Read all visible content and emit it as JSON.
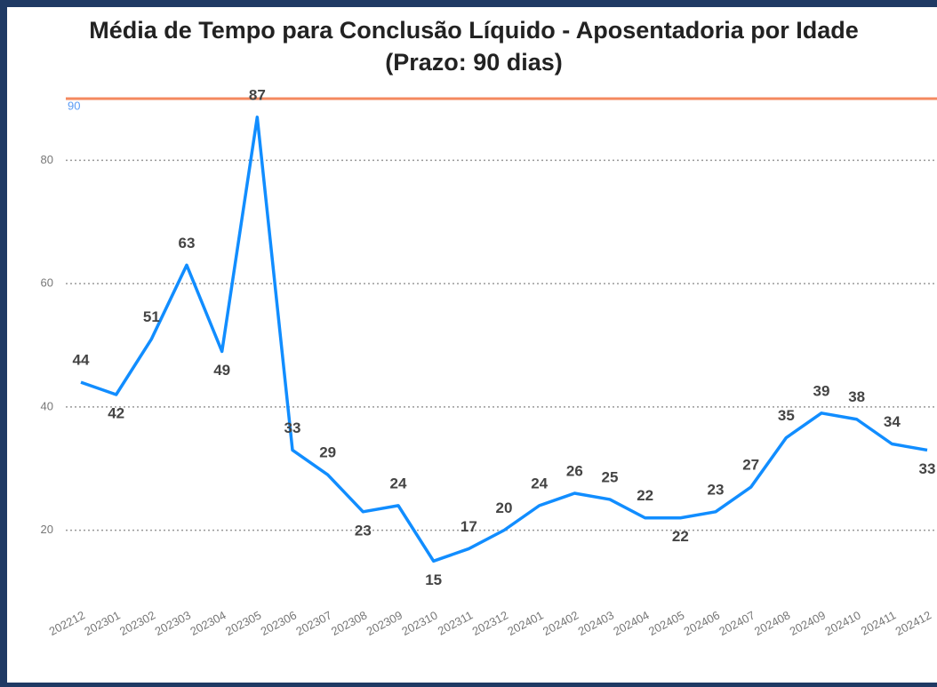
{
  "chart_data": {
    "type": "line",
    "title": "Média de Tempo para Conclusão Líquido - Aposentadoria por Idade",
    "subtitle": "(Prazo: 90 dias)",
    "categories": [
      "202212",
      "202301",
      "202302",
      "202303",
      "202304",
      "202305",
      "202306",
      "202307",
      "202308",
      "202309",
      "202310",
      "202311",
      "202312",
      "202401",
      "202402",
      "202403",
      "202404",
      "202405",
      "202406",
      "202407",
      "202408",
      "202409",
      "202410",
      "202411",
      "202412"
    ],
    "series": [
      {
        "name": "Média de Tempo",
        "color": "#118dff",
        "values": [
          44,
          42,
          51,
          63,
          49,
          87,
          33,
          29,
          23,
          24,
          15,
          17,
          20,
          24,
          26,
          25,
          22,
          22,
          23,
          27,
          35,
          39,
          38,
          34,
          33
        ]
      }
    ],
    "ylim": [
      10,
      90
    ],
    "yticks": [
      20,
      40,
      60,
      80
    ],
    "grid": true,
    "reference_line": {
      "value": 90,
      "color": "#f4895f",
      "label_color": "#5b9bf5"
    }
  }
}
